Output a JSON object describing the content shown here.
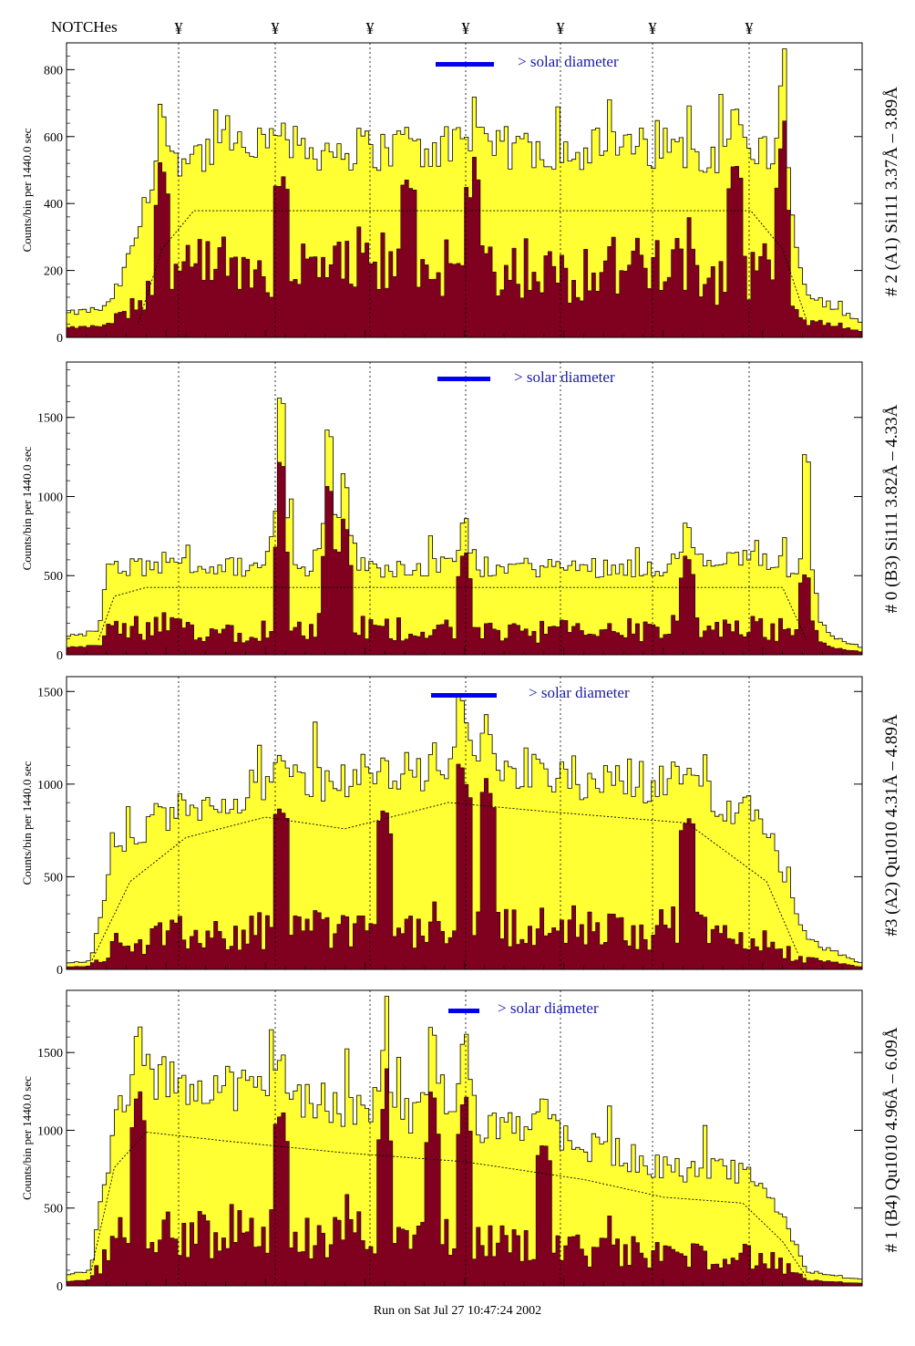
{
  "header": {
    "title": "NOTCHes",
    "notch_symbol": "¥"
  },
  "notch_positions": [
    196,
    302,
    406,
    511,
    615,
    716,
    822
  ],
  "footer": "Run on Sat Jul 27 10:47:24 2002",
  "colors": {
    "fill_light": "#ffff33",
    "fill_dark": "#800020",
    "bar_blue": "#0000ee",
    "text_blue": "#1a1aaa",
    "label_blue": "#0000cc",
    "label_purple": "#660066"
  },
  "chart_data": [
    {
      "type": "bar",
      "name": "panel-1",
      "ylabel": "Counts/bin per   1440.0 sec",
      "right_label": "# 2 (A1) Si111  3.37Å – 3.89Å",
      "annotation": "> solar diameter",
      "yticks": [
        0,
        200,
        400,
        600,
        800
      ],
      "ylim": [
        0,
        880
      ],
      "profile": [
        [
          0,
          0.08
        ],
        [
          0.05,
          0.1
        ],
        [
          0.07,
          0.2
        ],
        [
          0.1,
          0.45
        ],
        [
          0.14,
          0.62
        ],
        [
          0.25,
          0.64
        ],
        [
          0.5,
          0.64
        ],
        [
          0.75,
          0.64
        ],
        [
          0.88,
          0.63
        ],
        [
          0.9,
          0.45
        ],
        [
          0.93,
          0.15
        ],
        [
          1.0,
          0.05
        ]
      ],
      "dark_ratio": 0.38,
      "dash": [
        [
          0.09,
          0.05
        ],
        [
          0.12,
          0.3
        ],
        [
          0.16,
          0.43
        ],
        [
          0.5,
          0.43
        ],
        [
          0.86,
          0.43
        ],
        [
          0.9,
          0.3
        ],
        [
          0.93,
          0.06
        ]
      ],
      "spikes": [
        [
          0.12,
          0.83
        ],
        [
          0.27,
          0.75
        ],
        [
          0.43,
          0.73
        ],
        [
          0.51,
          0.7
        ],
        [
          0.9,
          0.92
        ],
        [
          0.84,
          0.82
        ]
      ]
    },
    {
      "type": "bar",
      "name": "panel-2",
      "ylabel": "Counts/bin per   1440.0 sec",
      "right_label": "# 0 (B3) Si111  3.82Å – 4.33Å",
      "annotation": "> solar diameter",
      "yticks": [
        0,
        500,
        1000,
        1500
      ],
      "ylim": [
        0,
        1850
      ],
      "profile": [
        [
          0,
          0.06
        ],
        [
          0.04,
          0.08
        ],
        [
          0.05,
          0.28
        ],
        [
          0.08,
          0.3
        ],
        [
          0.25,
          0.3
        ],
        [
          0.5,
          0.3
        ],
        [
          0.75,
          0.3
        ],
        [
          0.9,
          0.33
        ],
        [
          0.93,
          0.1
        ],
        [
          1.0,
          0.02
        ]
      ],
      "dark_ratio": 0.3,
      "dash": [
        [
          0.04,
          0.05
        ],
        [
          0.06,
          0.2
        ],
        [
          0.1,
          0.23
        ],
        [
          0.5,
          0.23
        ],
        [
          0.9,
          0.23
        ],
        [
          0.93,
          0.05
        ]
      ],
      "spikes": [
        [
          0.27,
          0.9
        ],
        [
          0.33,
          0.78
        ],
        [
          0.35,
          0.62
        ],
        [
          0.5,
          0.47
        ],
        [
          0.93,
          0.72
        ],
        [
          0.78,
          0.46
        ]
      ]
    },
    {
      "type": "bar",
      "name": "panel-3",
      "ylabel": "Counts/bin per   1440.0 sec",
      "right_label": "#3 (A2) Qu1010  4.31Å – 4.89Å",
      "annotation": "> solar diameter",
      "yticks": [
        0,
        500,
        1000,
        1500
      ],
      "ylim": [
        0,
        1580
      ],
      "profile": [
        [
          0,
          0.02
        ],
        [
          0.03,
          0.03
        ],
        [
          0.05,
          0.3
        ],
        [
          0.08,
          0.45
        ],
        [
          0.15,
          0.55
        ],
        [
          0.25,
          0.62
        ],
        [
          0.45,
          0.68
        ],
        [
          0.5,
          0.75
        ],
        [
          0.6,
          0.66
        ],
        [
          0.78,
          0.64
        ],
        [
          0.88,
          0.5
        ],
        [
          0.93,
          0.1
        ],
        [
          1.0,
          0.02
        ]
      ],
      "dark_ratio": 0.22,
      "dash": [
        [
          0.03,
          0.02
        ],
        [
          0.08,
          0.3
        ],
        [
          0.15,
          0.45
        ],
        [
          0.25,
          0.52
        ],
        [
          0.35,
          0.48
        ],
        [
          0.48,
          0.57
        ],
        [
          0.6,
          0.54
        ],
        [
          0.78,
          0.5
        ],
        [
          0.88,
          0.3
        ],
        [
          0.92,
          0.05
        ]
      ],
      "spikes": [
        [
          0.5,
          0.92
        ],
        [
          0.53,
          0.88
        ],
        [
          0.27,
          0.78
        ],
        [
          0.4,
          0.68
        ],
        [
          0.78,
          0.7
        ]
      ]
    },
    {
      "type": "bar",
      "name": "panel-4",
      "ylabel": "Counts/bin per   1440.0 sec",
      "right_label": "# 1 (B4) Qu1010 4.96Å – 6.09Å",
      "annotation": "> solar diameter",
      "yticks": [
        0,
        500,
        1000,
        1500
      ],
      "ylim": [
        0,
        1900
      ],
      "profile": [
        [
          0,
          0.04
        ],
        [
          0.03,
          0.05
        ],
        [
          0.06,
          0.55
        ],
        [
          0.1,
          0.7
        ],
        [
          0.2,
          0.68
        ],
        [
          0.35,
          0.6
        ],
        [
          0.5,
          0.55
        ],
        [
          0.65,
          0.48
        ],
        [
          0.75,
          0.4
        ],
        [
          0.85,
          0.38
        ],
        [
          0.9,
          0.25
        ],
        [
          0.93,
          0.05
        ],
        [
          1.0,
          0.02
        ]
      ],
      "dark_ratio": 0.28,
      "dash": [
        [
          0.03,
          0.04
        ],
        [
          0.06,
          0.4
        ],
        [
          0.1,
          0.52
        ],
        [
          0.2,
          0.49
        ],
        [
          0.35,
          0.45
        ],
        [
          0.5,
          0.42
        ],
        [
          0.65,
          0.36
        ],
        [
          0.75,
          0.3
        ],
        [
          0.85,
          0.28
        ],
        [
          0.9,
          0.15
        ],
        [
          0.93,
          0.03
        ]
      ],
      "spikes": [
        [
          0.09,
          0.9
        ],
        [
          0.27,
          0.82
        ],
        [
          0.4,
          0.86
        ],
        [
          0.46,
          0.88
        ],
        [
          0.5,
          0.9
        ],
        [
          0.6,
          0.7
        ]
      ]
    }
  ]
}
